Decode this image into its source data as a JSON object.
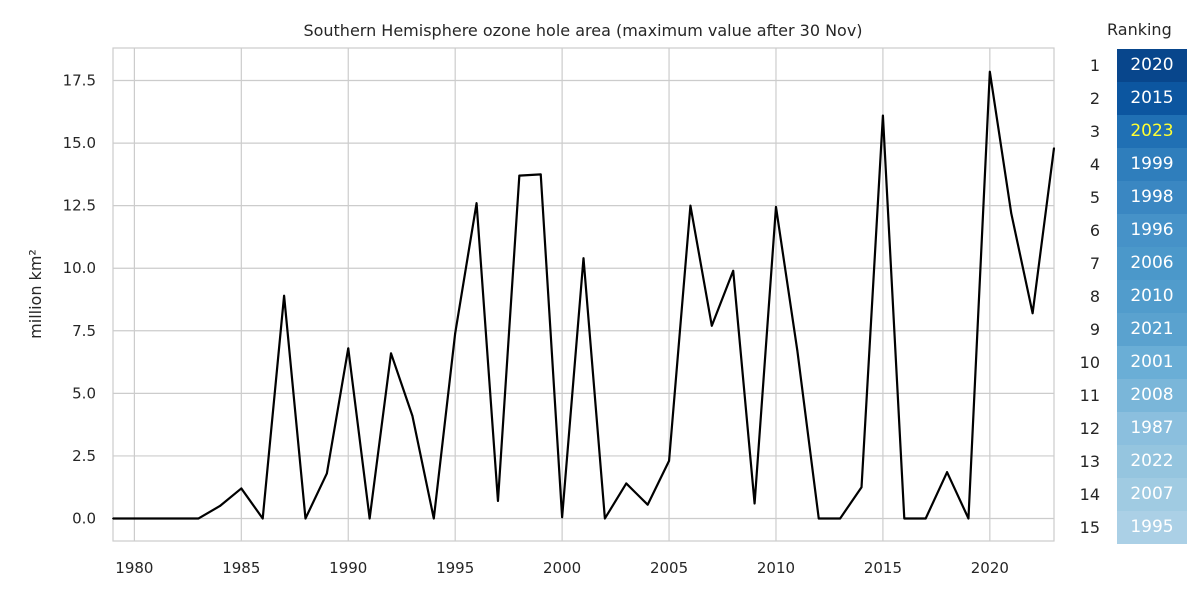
{
  "chart_data": {
    "type": "line",
    "title": "Southern Hemisphere ozone hole area (maximum value after 30 Nov)",
    "xlabel": "",
    "ylabel": "million km²",
    "xlim": [
      1979,
      2023
    ],
    "ylim": [
      -0.9,
      18.8
    ],
    "grid": true,
    "xticks": [
      1980,
      1985,
      1990,
      1995,
      2000,
      2005,
      2010,
      2015,
      2020
    ],
    "yticks": [
      0.0,
      2.5,
      5.0,
      7.5,
      10.0,
      12.5,
      15.0,
      17.5
    ],
    "ytick_labels": [
      "0.0",
      "2.5",
      "5.0",
      "7.5",
      "10.0",
      "12.5",
      "15.0",
      "17.5"
    ],
    "line_color": "#000000",
    "series": [
      {
        "x": [
          1979,
          1980,
          1981,
          1982,
          1983,
          1984,
          1985,
          1986,
          1987,
          1988,
          1989,
          1990,
          1991,
          1992,
          1993,
          1994,
          1995,
          1996,
          1997,
          1998,
          1999,
          2000,
          2001,
          2002,
          2003,
          2004,
          2005,
          2006,
          2007,
          2008,
          2009,
          2010,
          2011,
          2012,
          2013,
          2014,
          2015,
          2016,
          2017,
          2018,
          2019,
          2020,
          2021,
          2022,
          2023
        ],
        "values": [
          0,
          0,
          0,
          0,
          0,
          0.5,
          1.2,
          0,
          8.9,
          0,
          1.8,
          6.8,
          0,
          6.6,
          4.1,
          0,
          7.4,
          12.6,
          0.7,
          13.7,
          13.75,
          0.05,
          10.4,
          0,
          1.4,
          0.55,
          2.3,
          12.5,
          7.7,
          9.9,
          0.6,
          12.45,
          6.7,
          0,
          0,
          1.25,
          16.1,
          0,
          0,
          1.85,
          0,
          17.85,
          12.2,
          8.2,
          14.8
        ]
      }
    ]
  },
  "ranking": {
    "title": "Ranking",
    "highlight_color": "#ffff33",
    "items": [
      {
        "rank": "1",
        "year": "2020",
        "color": "#08468c"
      },
      {
        "rank": "2",
        "year": "2015",
        "color": "#0c56a0"
      },
      {
        "rank": "3",
        "year": "2023",
        "color": "#2070b4",
        "highlight": true
      },
      {
        "rank": "4",
        "year": "1999",
        "color": "#2f7ebc"
      },
      {
        "rank": "5",
        "year": "1998",
        "color": "#3a87c2"
      },
      {
        "rank": "6",
        "year": "1996",
        "color": "#4692c8"
      },
      {
        "rank": "7",
        "year": "2006",
        "color": "#4b98ca"
      },
      {
        "rank": "8",
        "year": "2010",
        "color": "#519ccc"
      },
      {
        "rank": "9",
        "year": "2021",
        "color": "#5aa2cf"
      },
      {
        "rank": "10",
        "year": "2001",
        "color": "#6aaed6"
      },
      {
        "rank": "11",
        "year": "2008",
        "color": "#7ab6d9"
      },
      {
        "rank": "12",
        "year": "1987",
        "color": "#8bbfde"
      },
      {
        "rank": "13",
        "year": "2022",
        "color": "#95c5df"
      },
      {
        "rank": "14",
        "year": "2007",
        "color": "#a0cbe2"
      },
      {
        "rank": "15",
        "year": "1995",
        "color": "#abd0e6"
      }
    ]
  }
}
